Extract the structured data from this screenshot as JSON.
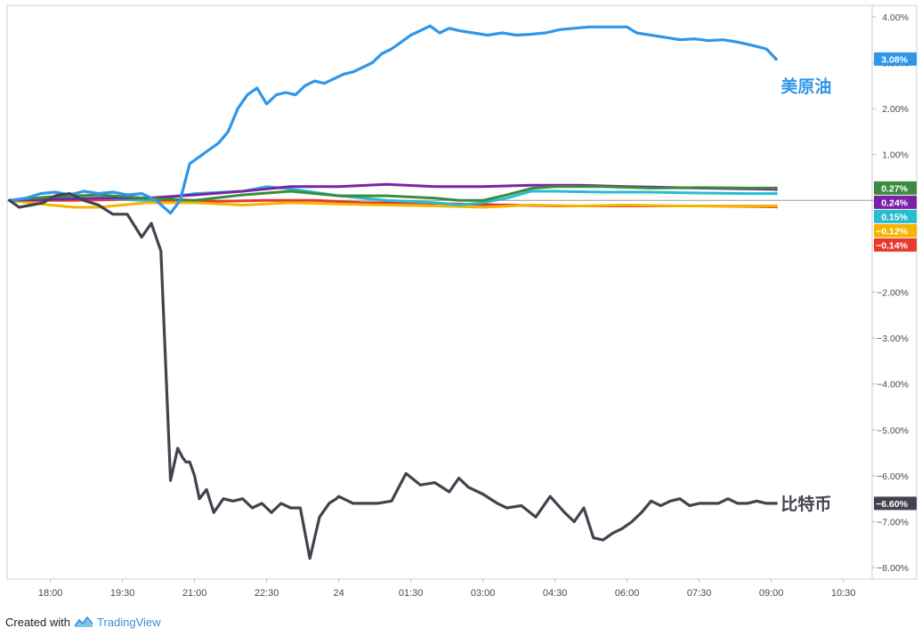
{
  "footer": {
    "created_with": "Created with",
    "brand": "TradingView"
  },
  "chart_data": {
    "type": "line",
    "title": "",
    "xlabel": "",
    "ylabel": "",
    "ylim": [
      -8.25,
      4.25
    ],
    "y_tick_values": [
      4,
      3,
      2,
      1,
      0,
      -1,
      -2,
      -3,
      -4,
      -5,
      -6,
      -7,
      -8
    ],
    "y_tick_labels": [
      "4.00%",
      "3.00%",
      "2.00%",
      "1.00%",
      "",
      "−1.00%",
      "−2.00%",
      "−3.00%",
      "−4.00%",
      "−5.00%",
      "−6.00%",
      "−7.00%",
      "−8.00%"
    ],
    "x_range": [
      -0.4,
      17.6
    ],
    "x_tick_values": [
      0.5,
      2,
      3.5,
      5,
      6.5,
      8,
      9.5,
      11,
      12.5,
      14,
      15.5,
      17
    ],
    "x_tick_labels": [
      "18:00",
      "19:30",
      "21:00",
      "22:30",
      "24",
      "01:30",
      "03:00",
      "04:30",
      "06:00",
      "07:30",
      "09:00",
      "10:30"
    ],
    "x_unit": "hours since 17:30",
    "grid": false,
    "zero_line": true,
    "series": [
      {
        "name": "美原油",
        "color": "#2f96e8",
        "last_label": "3.08%",
        "x": [
          -0.35,
          0,
          0.3,
          0.6,
          0.9,
          1.2,
          1.5,
          1.8,
          2.1,
          2.4,
          2.7,
          3.0,
          3.2,
          3.4,
          3.6,
          3.8,
          4.0,
          4.2,
          4.4,
          4.6,
          4.8,
          5.0,
          5.2,
          5.4,
          5.6,
          5.8,
          6.0,
          6.2,
          6.4,
          6.6,
          6.8,
          7.0,
          7.2,
          7.4,
          7.6,
          7.8,
          8.0,
          8.2,
          8.4,
          8.6,
          8.8,
          9.0,
          9.3,
          9.6,
          9.9,
          10.2,
          10.5,
          10.8,
          11.1,
          11.4,
          11.7,
          12.0,
          12.3,
          12.5,
          12.7,
          13.0,
          13.3,
          13.6,
          13.9,
          14.2,
          14.5,
          14.8,
          15.1,
          15.4,
          15.6
        ],
        "values": [
          0.0,
          0.05,
          0.15,
          0.18,
          0.12,
          0.2,
          0.15,
          0.18,
          0.12,
          0.15,
          0.0,
          -0.28,
          0.0,
          0.8,
          0.95,
          1.1,
          1.25,
          1.5,
          2.0,
          2.3,
          2.45,
          2.1,
          2.3,
          2.35,
          2.3,
          2.5,
          2.6,
          2.55,
          2.65,
          2.75,
          2.8,
          2.9,
          3.0,
          3.2,
          3.3,
          3.45,
          3.6,
          3.7,
          3.8,
          3.65,
          3.75,
          3.7,
          3.65,
          3.6,
          3.65,
          3.6,
          3.62,
          3.65,
          3.72,
          3.75,
          3.78,
          3.78,
          3.78,
          3.78,
          3.65,
          3.6,
          3.55,
          3.5,
          3.52,
          3.48,
          3.5,
          3.45,
          3.38,
          3.3,
          3.08
        ]
      },
      {
        "name": "",
        "color": "#3a8b3e",
        "last_label": "0.27%",
        "x": [
          -0.35,
          0.5,
          1.5,
          2.5,
          3.5,
          4.5,
          5.5,
          6.5,
          7.5,
          8.5,
          9.0,
          9.5,
          10.0,
          10.5,
          11.0,
          12.0,
          13.0,
          14.0,
          15.0,
          15.6
        ],
        "values": [
          0.0,
          0.08,
          0.12,
          0.05,
          0.0,
          0.12,
          0.2,
          0.1,
          0.1,
          0.05,
          0.0,
          0.0,
          0.12,
          0.26,
          0.3,
          0.3,
          0.27,
          0.28,
          0.27,
          0.27
        ]
      },
      {
        "name": "",
        "color": "#7b22a8",
        "last_label": "0.24%",
        "x": [
          -0.35,
          0.5,
          1.5,
          2.5,
          3.5,
          4.5,
          5.5,
          6.5,
          7.5,
          8.5,
          9.5,
          10.5,
          11.5,
          12.5,
          13.5,
          14.5,
          15.6
        ],
        "values": [
          0.0,
          0.02,
          0.05,
          0.05,
          0.12,
          0.2,
          0.3,
          0.3,
          0.35,
          0.3,
          0.3,
          0.33,
          0.33,
          0.3,
          0.28,
          0.26,
          0.24
        ]
      },
      {
        "name": "",
        "color": "#27bcd0",
        "last_label": "0.15%",
        "x": [
          -0.35,
          0.5,
          1.5,
          2.5,
          3.5,
          4.5,
          5.0,
          5.5,
          6.5,
          7.5,
          8.5,
          9.0,
          9.5,
          10.0,
          10.5,
          11.0,
          12.0,
          13.0,
          14.0,
          15.0,
          15.6
        ],
        "values": [
          0.0,
          0.03,
          0.05,
          0.0,
          0.15,
          0.2,
          0.3,
          0.25,
          0.1,
          0.0,
          -0.05,
          -0.1,
          -0.05,
          0.05,
          0.2,
          0.2,
          0.18,
          0.18,
          0.16,
          0.15,
          0.15
        ]
      },
      {
        "name": "",
        "color": "#f5b400",
        "last_label": "−0.12%",
        "x": [
          -0.35,
          0.5,
          1.0,
          1.5,
          2.5,
          3.5,
          4.5,
          5.5,
          6.5,
          7.5,
          8.5,
          9.5,
          10.5,
          11.5,
          12.5,
          13.5,
          14.5,
          15.6
        ],
        "values": [
          0.0,
          -0.1,
          -0.15,
          -0.15,
          -0.05,
          -0.05,
          -0.1,
          -0.05,
          -0.08,
          -0.1,
          -0.12,
          -0.15,
          -0.1,
          -0.12,
          -0.1,
          -0.12,
          -0.12,
          -0.12
        ]
      },
      {
        "name": "",
        "color": "#e8392c",
        "last_label": "−0.14%",
        "x": [
          -0.35,
          1.0,
          2.0,
          3.0,
          4.0,
          5.0,
          6.0,
          7.0,
          8.0,
          9.0,
          10.0,
          11.0,
          12.0,
          13.0,
          14.0,
          15.0,
          15.6
        ],
        "values": [
          0.0,
          0.0,
          0.02,
          -0.02,
          -0.02,
          0.0,
          0.0,
          -0.05,
          -0.05,
          -0.08,
          -0.1,
          -0.12,
          -0.12,
          -0.12,
          -0.12,
          -0.13,
          -0.14
        ]
      },
      {
        "name": "比特币",
        "color": "#43434f",
        "last_label": "−6.60%",
        "x": [
          -0.35,
          -0.15,
          0.1,
          0.35,
          0.6,
          0.9,
          1.2,
          1.5,
          1.8,
          2.1,
          2.4,
          2.6,
          2.8,
          3.0,
          3.15,
          3.25,
          3.32,
          3.4,
          3.5,
          3.6,
          3.75,
          3.9,
          4.1,
          4.3,
          4.5,
          4.7,
          4.9,
          5.1,
          5.3,
          5.5,
          5.7,
          5.9,
          6.1,
          6.3,
          6.45,
          6.5,
          6.6,
          6.8,
          7.0,
          7.3,
          7.6,
          7.9,
          8.2,
          8.5,
          8.8,
          9.0,
          9.2,
          9.5,
          9.8,
          10.0,
          10.3,
          10.6,
          10.9,
          11.2,
          11.4,
          11.6,
          11.8,
          12.0,
          12.2,
          12.4,
          12.6,
          12.8,
          13.0,
          13.2,
          13.4,
          13.6,
          13.8,
          14.0,
          14.2,
          14.4,
          14.6,
          14.8,
          15.0,
          15.2,
          15.4,
          15.6
        ],
        "values": [
          0.0,
          -0.15,
          -0.1,
          -0.05,
          0.1,
          0.15,
          0.0,
          -0.1,
          -0.3,
          -0.3,
          -0.8,
          -0.5,
          -1.1,
          -6.1,
          -5.4,
          -5.6,
          -5.7,
          -5.7,
          -6.0,
          -6.5,
          -6.3,
          -6.8,
          -6.5,
          -6.55,
          -6.5,
          -6.7,
          -6.6,
          -6.8,
          -6.6,
          -6.7,
          -6.7,
          -7.8,
          -6.9,
          -6.6,
          -6.5,
          -6.45,
          -6.5,
          -6.6,
          -6.6,
          -6.6,
          -6.55,
          -5.95,
          -6.2,
          -6.15,
          -6.35,
          -6.05,
          -6.25,
          -6.4,
          -6.6,
          -6.7,
          -6.65,
          -6.9,
          -6.45,
          -6.8,
          -7.0,
          -6.7,
          -7.35,
          -7.4,
          -7.25,
          -7.15,
          -7.0,
          -6.8,
          -6.55,
          -6.65,
          -6.55,
          -6.5,
          -6.65,
          -6.6,
          -6.6,
          -6.6,
          -6.5,
          -6.6,
          -6.6,
          -6.55,
          -6.6,
          -6.6
        ]
      }
    ],
    "annotations": [
      {
        "text": "美原油",
        "color": "#2f96e8",
        "x": 15.7,
        "y": 2.5
      },
      {
        "text": "比特币",
        "color": "#43434f",
        "x": 15.7,
        "y": -6.6
      }
    ]
  }
}
